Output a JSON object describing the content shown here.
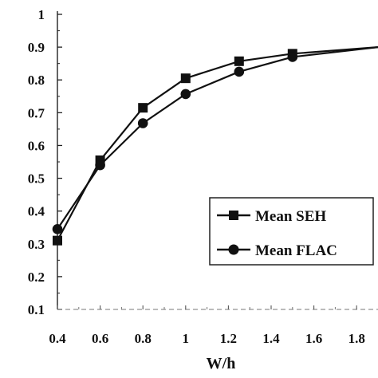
{
  "chart_data": {
    "type": "line",
    "xlabel": "W/h",
    "ylabel": "",
    "title": "",
    "xlim": [
      0.4,
      1.9
    ],
    "ylim": [
      0.1,
      1.0
    ],
    "x_ticks": [
      "0.4",
      "0.6",
      "0.8",
      "1",
      "1.2",
      "1.4",
      "1.6",
      "1.8"
    ],
    "y_ticks": [
      "0.1",
      "0.2",
      "0.3",
      "0.4",
      "0.5",
      "0.6",
      "0.7",
      "0.8",
      "0.9",
      "1"
    ],
    "grid": false,
    "legend_position": "lower-right",
    "series": [
      {
        "name": "Mean SEH",
        "marker": "square",
        "color": "#111111",
        "x": [
          0.4,
          0.6,
          0.8,
          1.0,
          1.25,
          1.5,
          1.9
        ],
        "y": [
          0.31,
          0.555,
          0.715,
          0.805,
          0.857,
          0.88,
          0.9
        ]
      },
      {
        "name": "Mean FLAC",
        "marker": "circle",
        "color": "#111111",
        "x": [
          0.4,
          0.6,
          0.8,
          1.0,
          1.25,
          1.5,
          1.9
        ],
        "y": [
          0.345,
          0.54,
          0.668,
          0.757,
          0.825,
          0.87,
          0.9
        ]
      }
    ]
  }
}
